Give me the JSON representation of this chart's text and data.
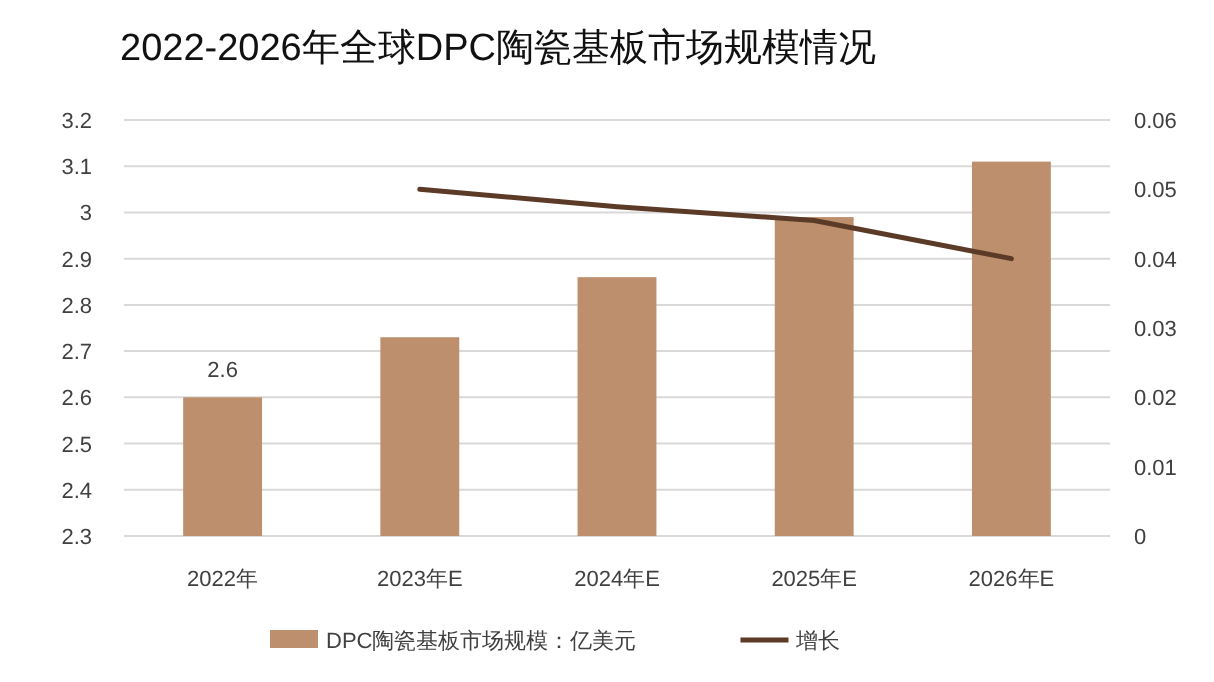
{
  "chart_data": {
    "type": "bar",
    "title": "2022-2026年全球DPC陶瓷基板市场规模情况",
    "categories": [
      "2022年",
      "2023年E",
      "2024年E",
      "2025年E",
      "2026年E"
    ],
    "series": [
      {
        "name": "DPC陶瓷基板市场规模：亿美元",
        "color": "#bd8f6c",
        "values": [
          2.6,
          2.73,
          2.86,
          2.99,
          3.11
        ],
        "value_labels": [
          "2.6",
          null,
          null,
          null,
          null
        ]
      },
      {
        "name": "增长",
        "type": "line",
        "axis": "y2",
        "color": "#5b3b28",
        "values": [
          null,
          0.05,
          0.0475,
          0.0455,
          0.04
        ]
      }
    ],
    "ylim": [
      2.3,
      3.2
    ],
    "yticks": [
      2.3,
      2.4,
      2.5,
      2.6,
      2.7,
      2.8,
      2.9,
      3,
      3.1,
      3.2
    ],
    "y2lim": [
      0,
      0.06
    ],
    "y2ticks": [
      0,
      0.01,
      0.02,
      0.03,
      0.04,
      0.05,
      0.06
    ],
    "grid": "y",
    "legend": "bottom"
  }
}
